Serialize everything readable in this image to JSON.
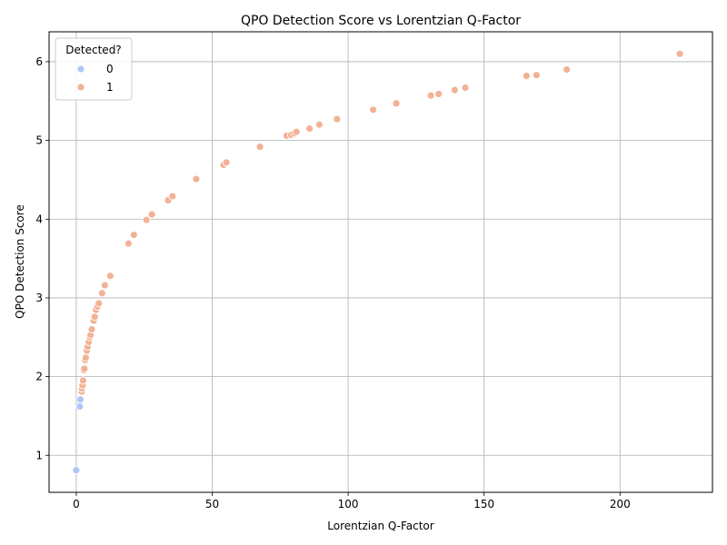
{
  "chart_data": {
    "type": "scatter",
    "title": "QPO Detection Score vs Lorentzian Q-Factor",
    "xlabel": "Lorentzian Q-Factor",
    "ylabel": "QPO Detection Score",
    "xlim": [
      -10,
      234
    ],
    "ylim": [
      0.53,
      6.38
    ],
    "xticks": [
      0,
      50,
      100,
      150,
      200
    ],
    "yticks": [
      1,
      2,
      3,
      4,
      5,
      6
    ],
    "grid": true,
    "legend": {
      "title": "Detected?",
      "placement": "top-left"
    },
    "series": [
      {
        "name": "0",
        "color": "#aec7f7",
        "x": [
          0.0,
          1.3,
          1.5
        ],
        "y": [
          0.81,
          1.62,
          1.71
        ]
      },
      {
        "name": "1",
        "color": "#f2b295",
        "x": [
          2.0,
          2.1,
          2.3,
          2.5,
          2.8,
          3.0,
          3.3,
          3.5,
          3.9,
          4.2,
          4.6,
          5.0,
          5.3,
          5.7,
          6.4,
          6.8,
          7.3,
          7.8,
          8.3,
          9.5,
          10.5,
          12.5,
          19.2,
          21.2,
          25.8,
          27.8,
          33.8,
          35.4,
          44.1,
          54.2,
          55.2,
          67.6,
          77.4,
          79.0,
          80.2,
          81.0,
          85.8,
          89.4,
          95.9,
          109.2,
          117.7,
          130.4,
          133.3,
          139.2,
          143.1,
          165.6,
          169.3,
          180.4,
          222.0
        ],
        "y": [
          1.81,
          1.85,
          1.89,
          1.95,
          2.08,
          2.1,
          2.21,
          2.24,
          2.33,
          2.38,
          2.44,
          2.5,
          2.53,
          2.6,
          2.71,
          2.76,
          2.85,
          2.89,
          2.93,
          3.06,
          3.16,
          3.28,
          3.69,
          3.8,
          3.99,
          4.06,
          4.24,
          4.29,
          4.51,
          4.69,
          4.72,
          4.92,
          5.06,
          5.07,
          5.09,
          5.11,
          5.15,
          5.2,
          5.27,
          5.39,
          5.47,
          5.57,
          5.59,
          5.64,
          5.67,
          5.82,
          5.83,
          5.9,
          6.1
        ]
      }
    ]
  }
}
